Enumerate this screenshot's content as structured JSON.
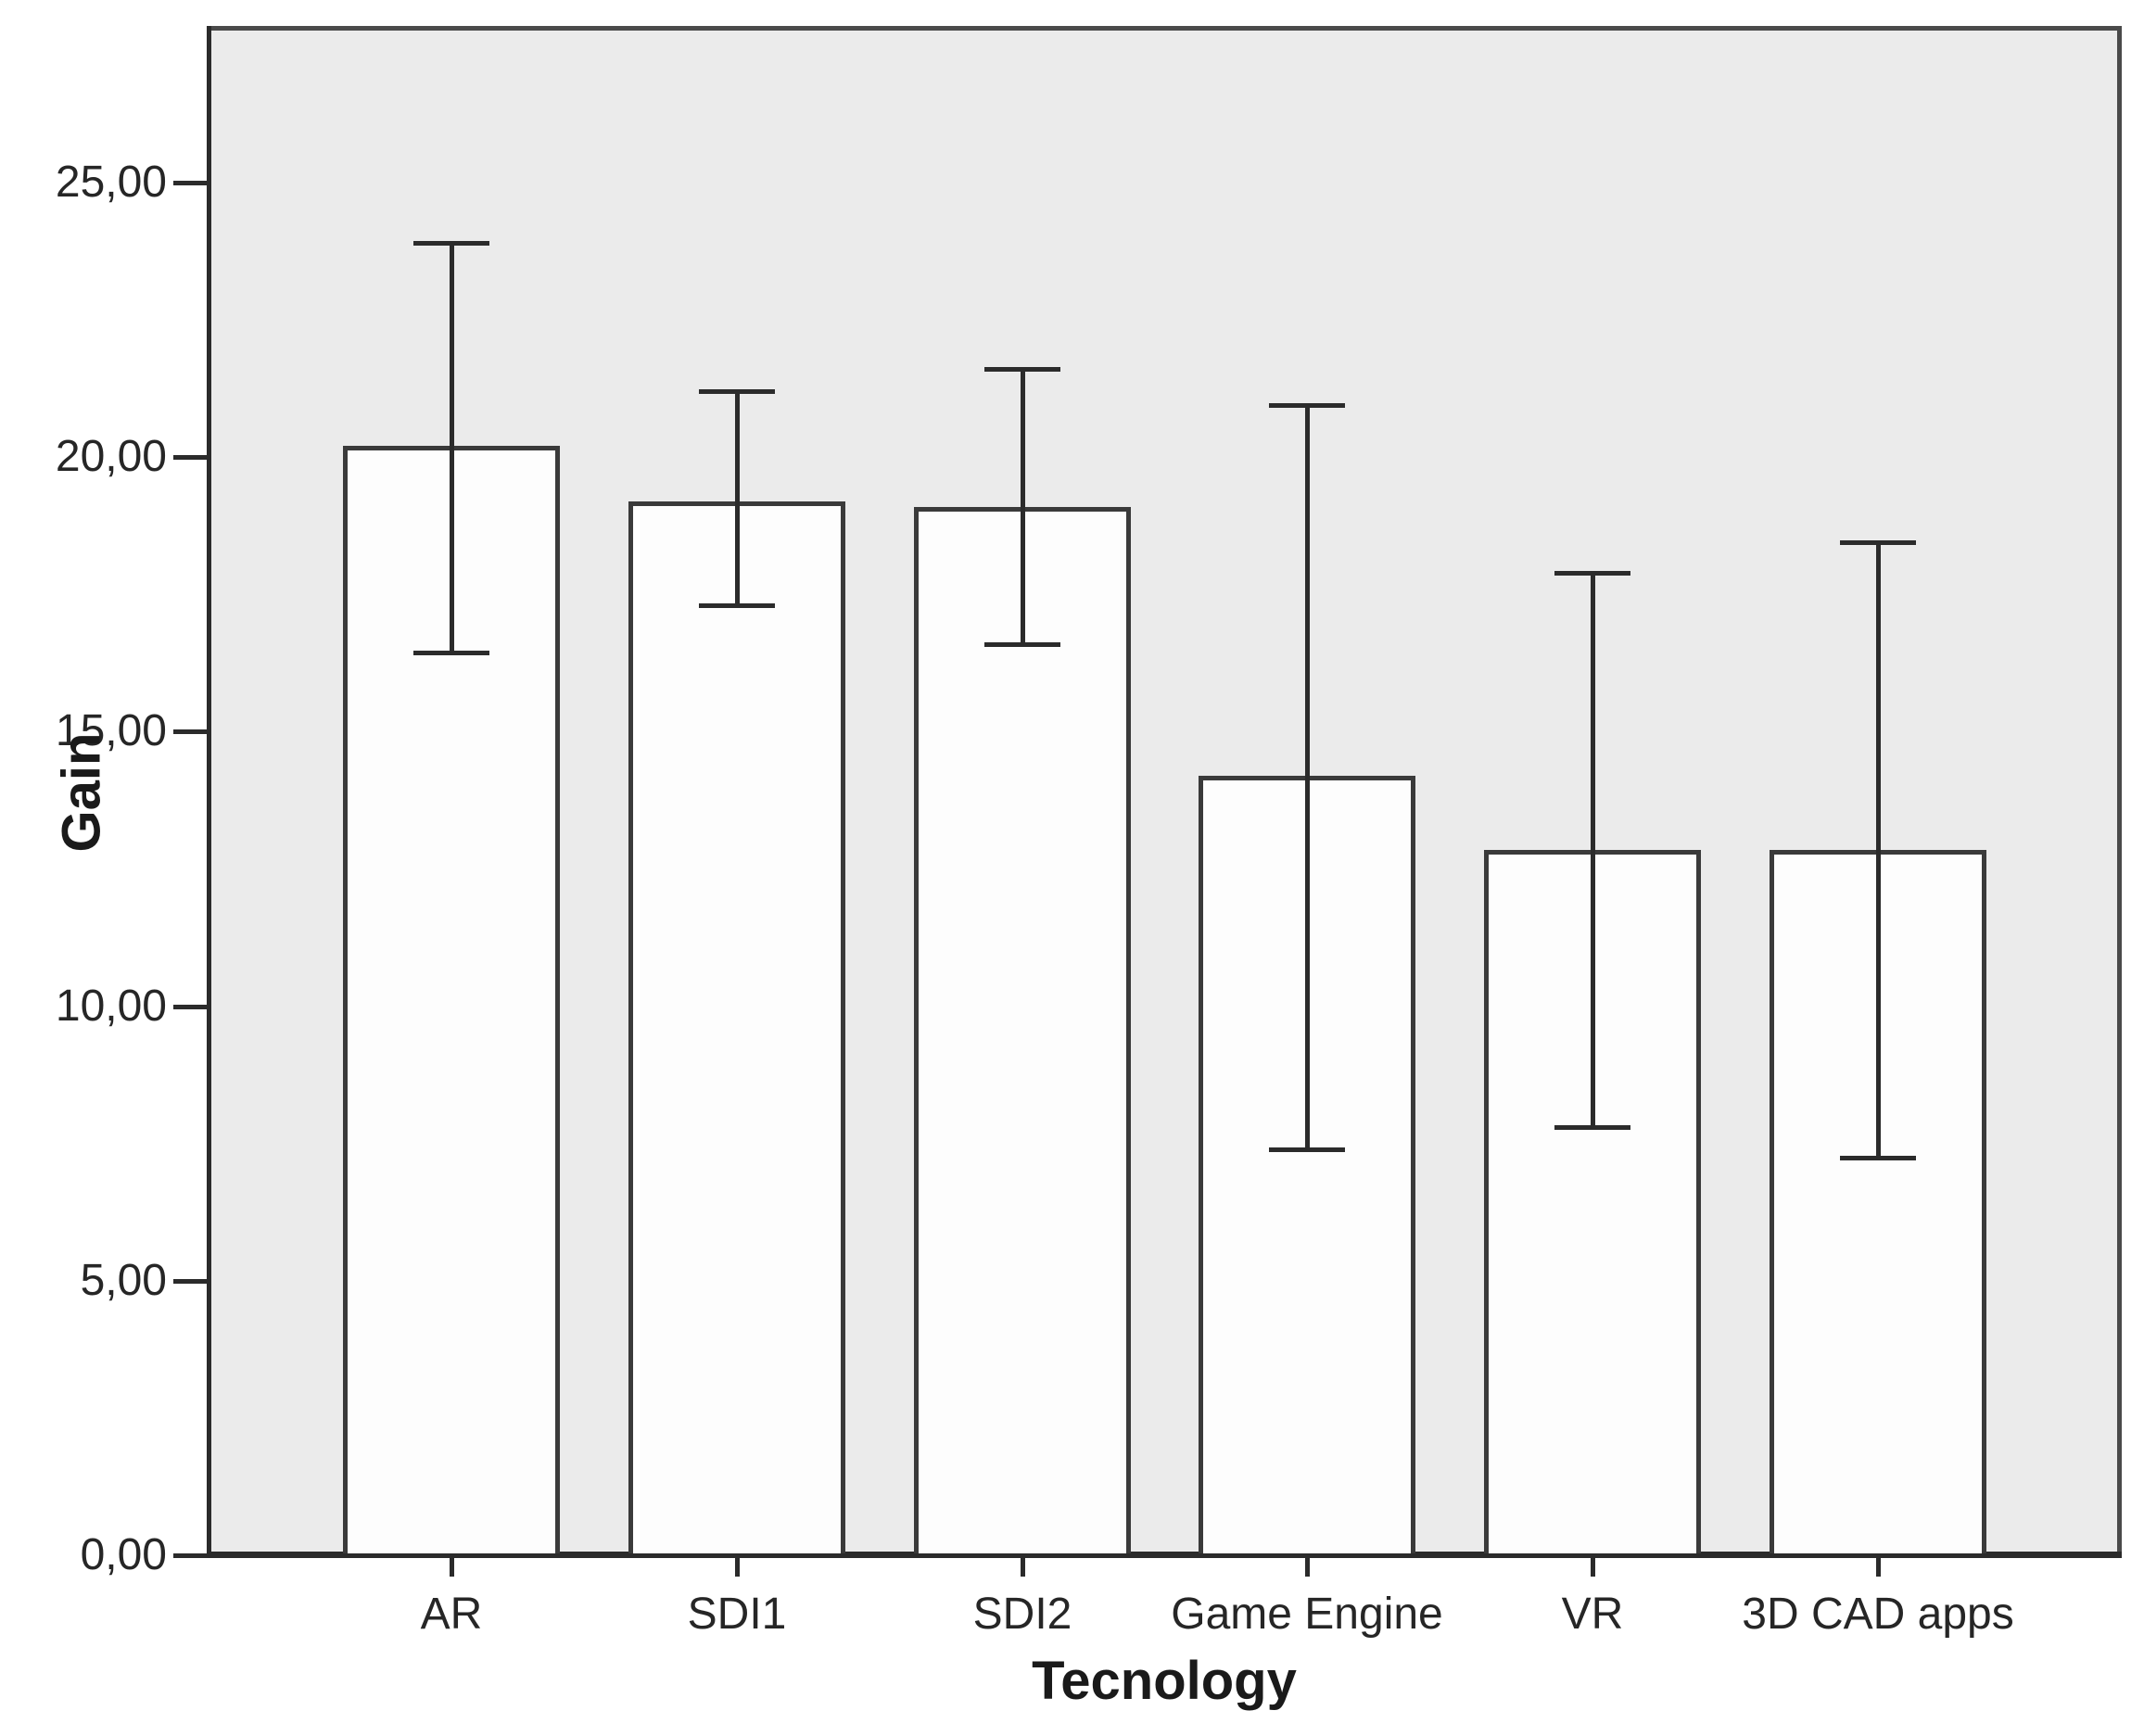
{
  "chart_data": {
    "type": "bar",
    "title": "",
    "xlabel": "Tecnology",
    "ylabel": "Gain",
    "categories": [
      "AR",
      "SDI1",
      "SDI2",
      "Game Engine",
      "VR",
      "3D CAD apps"
    ],
    "series": [
      {
        "name": "Gain",
        "values": [
          20.2,
          19.2,
          19.1,
          14.2,
          12.85,
          12.85
        ]
      }
    ],
    "error_bars": {
      "low": [
        16.45,
        17.3,
        16.6,
        7.4,
        7.8,
        7.25
      ],
      "high": [
        23.9,
        21.2,
        21.6,
        20.95,
        17.9,
        18.45
      ]
    },
    "y_ticks": {
      "values": [
        0,
        5,
        10,
        15,
        20,
        25
      ],
      "labels": [
        "0,00",
        "5,00",
        "10,00",
        "15,00",
        "20,00",
        "25,00"
      ]
    },
    "ylim": [
      0,
      27.8
    ],
    "grid": false,
    "legend": false,
    "decimal_separator": ",",
    "bar_fill": "#fdfdfd",
    "bar_border": "#3a3a3a",
    "plot_background": "#ebebeb",
    "line_color": "#2b2b2b",
    "text_color": "#262626"
  }
}
